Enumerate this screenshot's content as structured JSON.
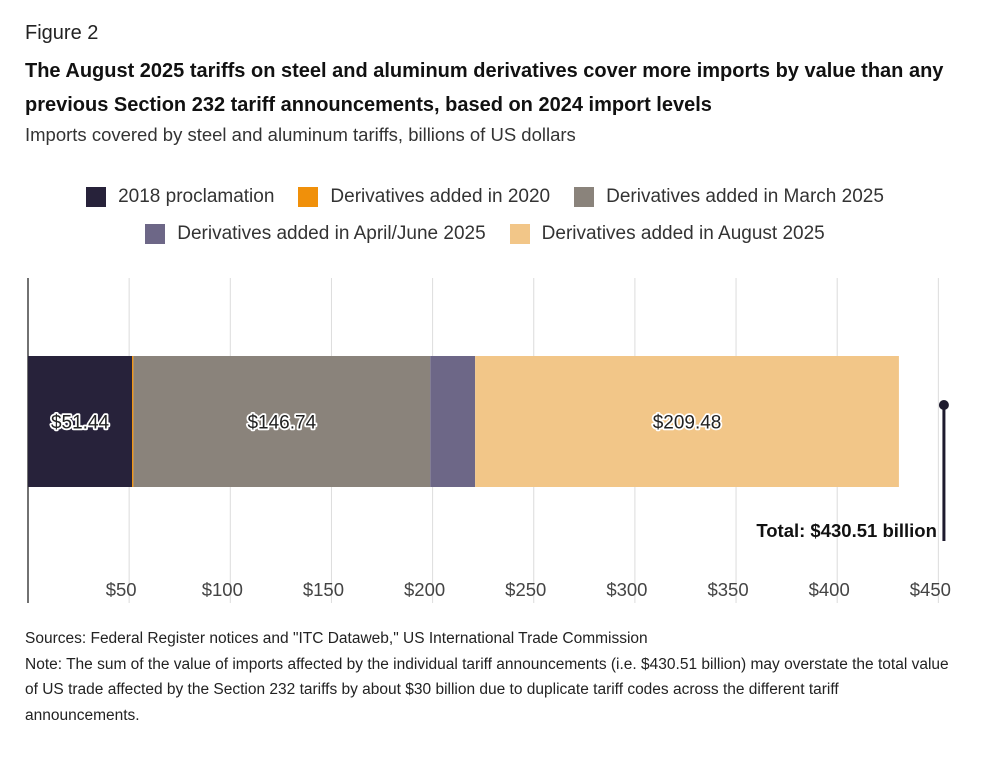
{
  "figure_label": "Figure 2",
  "footer": {
    "sources": "Sources: Federal Register notices and \"ITC Dataweb,\" US International Trade Commission",
    "note": "Note: The sum of the value of imports affected by the individual tariff announcements (i.e. $430.51 billion) may overstate the total value of US trade affected by the Section 232 tariffs by about $30 billion due to duplicate tariff codes across the different tariff announcements."
  },
  "chart_data": {
    "type": "bar",
    "orientation": "horizontal",
    "stacked": true,
    "title": "The August 2025 tariffs on steel and aluminum derivatives cover more imports by value than any previous Section 232 tariff announcements, based on 2024 import levels",
    "subtitle": "Imports covered by steel and aluminum tariffs, billions of US dollars",
    "xlabel": "",
    "ylabel": "",
    "xlim": [
      0,
      450
    ],
    "grid": true,
    "legend_position": "top-center",
    "x_ticks": [
      50,
      100,
      150,
      200,
      250,
      300,
      350,
      400,
      450
    ],
    "x_tick_labels": [
      "$50",
      "$100",
      "$150",
      "$200",
      "$250",
      "$300",
      "$350",
      "$400",
      "$450"
    ],
    "series": [
      {
        "name": "2018 proclamation",
        "value": 51.44,
        "label": "$51.44",
        "color": "#27223a"
      },
      {
        "name": "Derivatives added in 2020",
        "value": 0.66,
        "label": "",
        "color": "#f0900a"
      },
      {
        "name": "Derivatives added in March 2025",
        "value": 146.74,
        "label": "$146.74",
        "color": "#8a837b"
      },
      {
        "name": "Derivatives added in April/June 2025",
        "value": 22.19,
        "label": "",
        "color": "#6d6787"
      },
      {
        "name": "Derivatives added in August 2025",
        "value": 209.48,
        "label": "$209.48",
        "color": "#f2c688"
      }
    ],
    "total": 430.51,
    "total_label": "Total: $430.51 billion"
  }
}
